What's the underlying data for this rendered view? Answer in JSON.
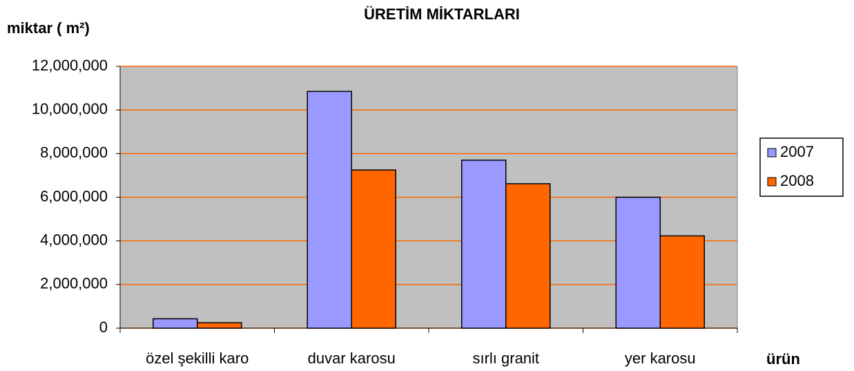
{
  "chart_data": {
    "type": "bar",
    "title": "ÜRETİM MİKTARLARI",
    "y_label": "miktar ( m²)",
    "x_label": "ürün",
    "categories": [
      "özel şekilli karo",
      "duvar karosu",
      "sırlı granit",
      "yer karosu"
    ],
    "series": [
      {
        "name": "2007",
        "color": "#9999ff",
        "values": [
          430000,
          10850000,
          7700000,
          6000000
        ]
      },
      {
        "name": "2008",
        "color": "#ff6600",
        "values": [
          250000,
          7250000,
          6620000,
          4230000
        ]
      }
    ],
    "ylim": [
      0,
      12000000
    ],
    "yticks": [
      0,
      {
        "value": 2000000,
        "label": "2,000,000"
      },
      {
        "value": 4000000,
        "label": "4,000,000"
      },
      {
        "value": 6000000,
        "label": "6,000,000"
      },
      {
        "value": 8000000,
        "label": "8,000,000"
      },
      {
        "value": 10000000,
        "label": "10,000,000"
      },
      {
        "value": 12000000,
        "label": "12,000,000"
      }
    ],
    "grid": true,
    "grid_color": "#ff6600",
    "plot_background": "#c0c0c0",
    "legend": "right"
  }
}
